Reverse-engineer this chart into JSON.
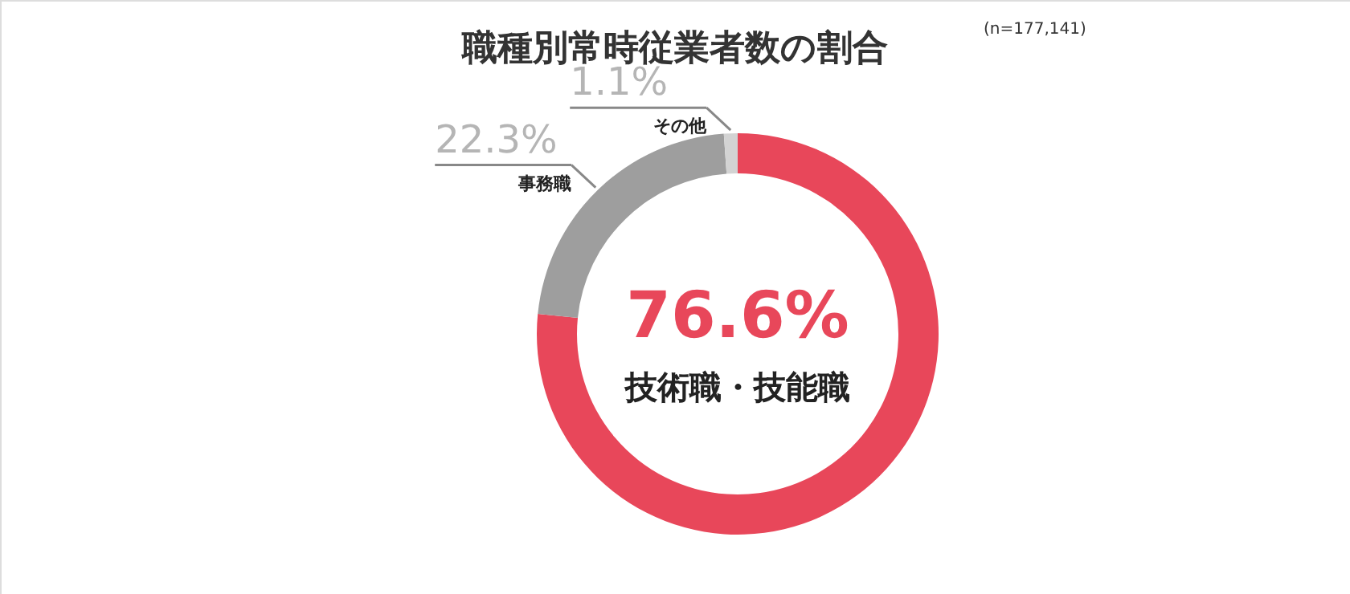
{
  "chart_data": {
    "type": "donut",
    "title": "職種別常時従業者数の割合",
    "annotations": [
      "(n=177,141)"
    ],
    "categories": [
      "技術職・技能職",
      "事務職",
      "その他"
    ],
    "values": [
      76.6,
      22.3,
      1.1
    ],
    "value_labels": [
      "76.6%",
      "22.3%",
      "1.1%"
    ],
    "colors": [
      "#e8475a",
      "#9e9e9e",
      "#d3d3d3"
    ]
  }
}
